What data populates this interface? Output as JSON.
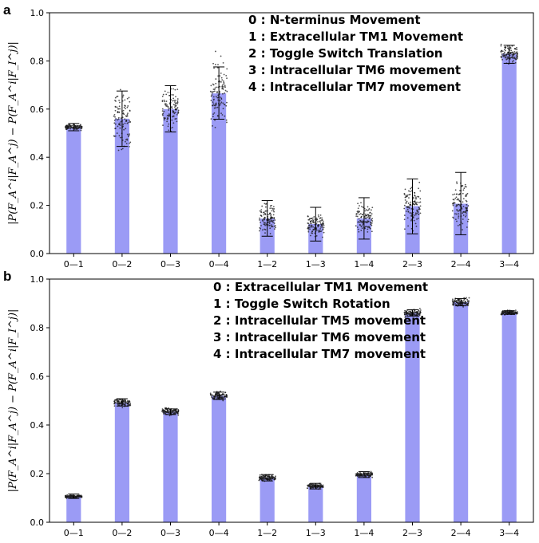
{
  "chart_data": [
    {
      "panel_label": "a",
      "type": "bar",
      "categories": [
        "0—1",
        "0—2",
        "0—3",
        "0—4",
        "1—2",
        "1—3",
        "1—4",
        "2—3",
        "2—4",
        "3—4"
      ],
      "values": [
        0.525,
        0.56,
        0.6,
        0.665,
        0.145,
        0.123,
        0.146,
        0.197,
        0.207,
        0.83
      ],
      "error_low": [
        0.51,
        0.445,
        0.505,
        0.558,
        0.072,
        0.052,
        0.06,
        0.082,
        0.078,
        0.79
      ],
      "error_high": [
        0.54,
        0.675,
        0.697,
        0.775,
        0.22,
        0.192,
        0.232,
        0.31,
        0.337,
        0.865
      ],
      "point_spread": [
        0.015,
        0.15,
        0.12,
        0.2,
        0.08,
        0.07,
        0.08,
        0.12,
        0.14,
        0.05
      ],
      "legend": [
        "0 : N-terminus Movement",
        "1 : Extracellular TM1 Movement",
        "2 : Toggle Switch Translation",
        "3 :  Intracellular TM6 movement",
        "4 :  Intracellular TM7 movement"
      ],
      "ylabel": "|P(F_A^i|F_A^j) − P(F_A^i|F_I^j)|",
      "ylim": [
        0,
        1.0
      ],
      "yticks": [
        "0.0",
        "0.2",
        "0.4",
        "0.6",
        "0.8",
        "1.0"
      ],
      "grid": false,
      "legend_placement": "top-right"
    },
    {
      "panel_label": "b",
      "type": "bar",
      "categories": [
        "0—1",
        "0—2",
        "0—3",
        "0—4",
        "1—2",
        "1—3",
        "1—4",
        "2—3",
        "2—4",
        "3—4"
      ],
      "values": [
        0.106,
        0.492,
        0.455,
        0.52,
        0.183,
        0.148,
        0.196,
        0.86,
        0.905,
        0.862
      ],
      "error_low": [
        0.098,
        0.478,
        0.443,
        0.505,
        0.17,
        0.137,
        0.184,
        0.848,
        0.89,
        0.855
      ],
      "error_high": [
        0.116,
        0.508,
        0.466,
        0.535,
        0.196,
        0.16,
        0.208,
        0.874,
        0.92,
        0.87
      ],
      "point_spread": [
        0.01,
        0.022,
        0.02,
        0.022,
        0.018,
        0.015,
        0.015,
        0.02,
        0.025,
        0.012
      ],
      "legend": [
        "0 : Extracellular TM1 Movement",
        "1 : Toggle Switch Rotation",
        "2 :  Intracellular TM5 movement",
        "3 :  Intracellular TM6 movement",
        "4 :  Intracellular TM7 movement"
      ],
      "ylabel": "|P(F_A^i|F_A^j) − P(F_A^i|F_I^j)|",
      "ylim": [
        0,
        1.0
      ],
      "yticks": [
        "0.0",
        "0.2",
        "0.4",
        "0.6",
        "0.8",
        "1.0"
      ],
      "grid": false,
      "legend_placement": "top-center"
    }
  ],
  "colors": {
    "bar": "#9b9bf5",
    "points": "#1a1a1a",
    "errorbar": "#000000",
    "axis": "#000000"
  }
}
